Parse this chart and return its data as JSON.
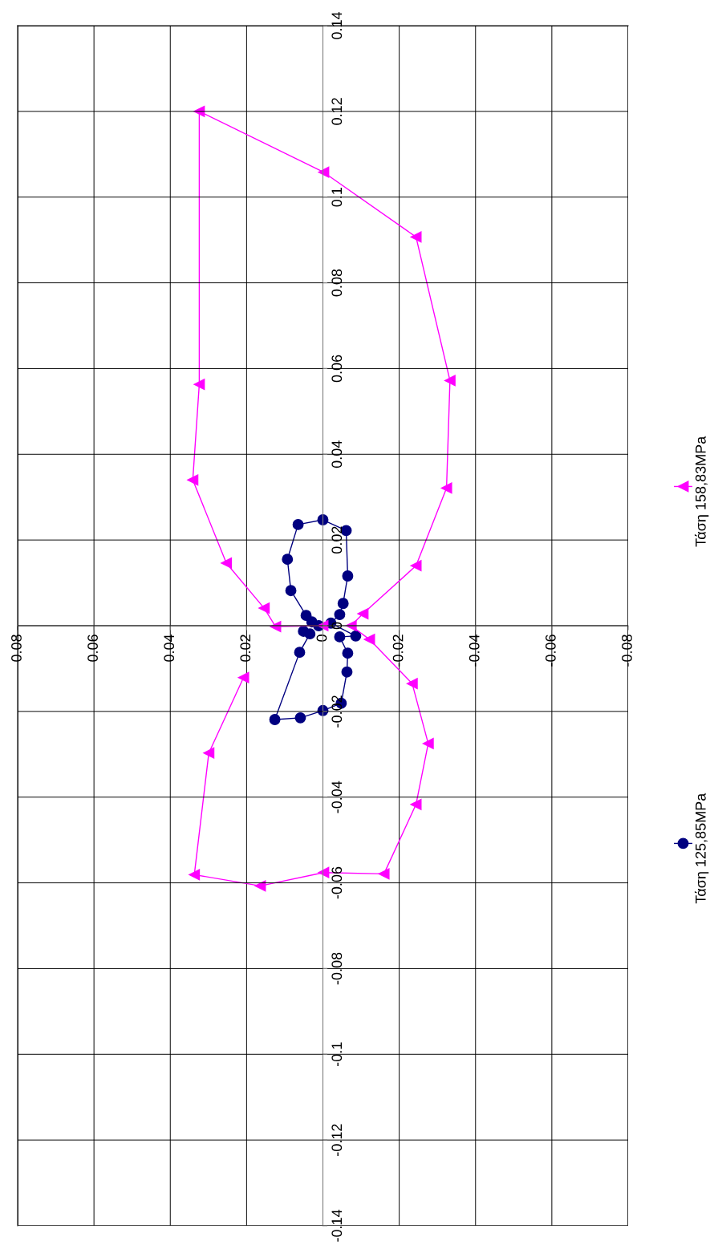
{
  "chart_data": {
    "type": "line",
    "xlim": [
      0.08,
      -0.08
    ],
    "xticks": [
      0.08,
      0.06,
      0.04,
      0.02,
      0,
      -0.02,
      -0.04,
      -0.06,
      -0.08
    ],
    "ylim": [
      -0.14,
      0.14
    ],
    "yticks": [
      -0.14,
      -0.12,
      -0.1,
      -0.08,
      -0.06,
      -0.04,
      -0.02,
      0,
      0.02,
      0.04,
      0.06,
      0.08,
      0.1,
      0.12,
      0.14
    ],
    "grid": true,
    "legend": "right",
    "line_style": "solid",
    "series": [
      {
        "name": "Τάση 125,85MPa",
        "color": "#000080",
        "marker": "circle",
        "x": [
          0.0011,
          0.0029,
          0.0044,
          0.0084,
          0.0093,
          0.0065,
          0,
          -0.0061,
          -0.0065,
          -0.0053,
          -0.0044,
          -0.0021,
          -0.0086,
          -0.0044,
          -0.0065,
          -0.0063,
          -0.0048,
          0,
          0.0059,
          0.0126,
          0.0061,
          0.0034,
          0.0051
        ],
        "values": [
          0,
          0.0009,
          0.0024,
          0.0082,
          0.0155,
          0.0236,
          0.0247,
          0.0222,
          0.0116,
          0.0052,
          0.0026,
          0.0006,
          -0.0024,
          -0.0026,
          -0.0064,
          -0.0108,
          -0.0181,
          -0.0198,
          -0.0215,
          -0.0219,
          -0.0062,
          -0.0019,
          -0.0013
        ]
      },
      {
        "name": "Τάση 158,83MPa",
        "color": "#ff00ff",
        "marker": "triangle",
        "x": [
          0,
          0.0124,
          0.0154,
          0.0253,
          0.0341,
          0.0324,
          0.0324,
          -0.0002,
          -0.0244,
          -0.0333,
          -0.0324,
          -0.0244,
          -0.0105,
          -0.0074,
          -0.0122,
          -0.0234,
          -0.0276,
          -0.0244,
          -0.016,
          -0.0002,
          0.0164,
          0.0337,
          0.0299,
          0.0208
        ],
        "values": [
          0,
          -0.0002,
          0.0041,
          0.0146,
          0.034,
          0.0563,
          0.12,
          0.1058,
          0.0907,
          0.0572,
          0.0321,
          0.014,
          0.0028,
          0,
          -0.0032,
          -0.0135,
          -0.0275,
          -0.0417,
          -0.0579,
          -0.0576,
          -0.0607,
          -0.0581,
          -0.0297,
          -0.0121
        ]
      }
    ]
  }
}
